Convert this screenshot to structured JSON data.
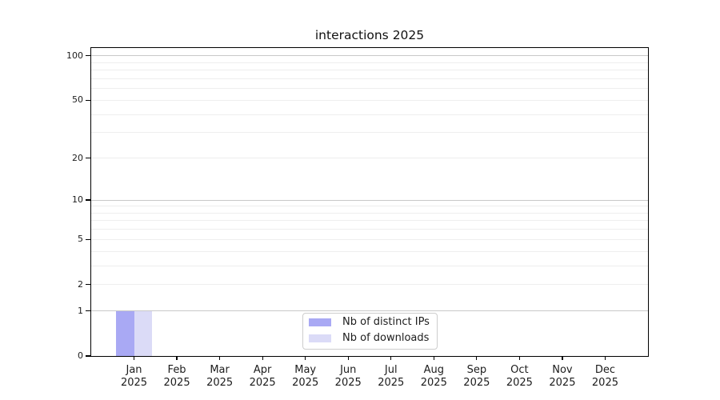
{
  "chart_data": {
    "type": "bar",
    "title": "interactions 2025",
    "x_ticks": [
      {
        "line1": "Jan",
        "line2": "2025"
      },
      {
        "line1": "Feb",
        "line2": "2025"
      },
      {
        "line1": "Mar",
        "line2": "2025"
      },
      {
        "line1": "Apr",
        "line2": "2025"
      },
      {
        "line1": "May",
        "line2": "2025"
      },
      {
        "line1": "Jun",
        "line2": "2025"
      },
      {
        "line1": "Jul",
        "line2": "2025"
      },
      {
        "line1": "Aug",
        "line2": "2025"
      },
      {
        "line1": "Sep",
        "line2": "2025"
      },
      {
        "line1": "Oct",
        "line2": "2025"
      },
      {
        "line1": "Nov",
        "line2": "2025"
      },
      {
        "line1": "Dec",
        "line2": "2025"
      }
    ],
    "series": [
      {
        "name": "Nb of distinct IPs",
        "color": "#a9a9f4",
        "values": [
          1,
          0,
          0,
          0,
          0,
          0,
          0,
          0,
          0,
          0,
          0,
          0
        ]
      },
      {
        "name": "Nb of downloads",
        "color": "#dbdbf7",
        "values": [
          1,
          0,
          0,
          0,
          0,
          0,
          0,
          0,
          0,
          0,
          0,
          0
        ]
      }
    ],
    "yscale": "log1p",
    "ylim": [
      0,
      113
    ],
    "yticks": [
      0,
      1,
      2,
      5,
      10,
      20,
      50,
      100
    ],
    "major_grid_values": [
      1,
      10,
      100
    ],
    "minor_grid_values": [
      2,
      3,
      4,
      5,
      6,
      7,
      8,
      9,
      20,
      30,
      40,
      50,
      60,
      70,
      80,
      90
    ],
    "grid": true,
    "legend_position": "lower center"
  }
}
